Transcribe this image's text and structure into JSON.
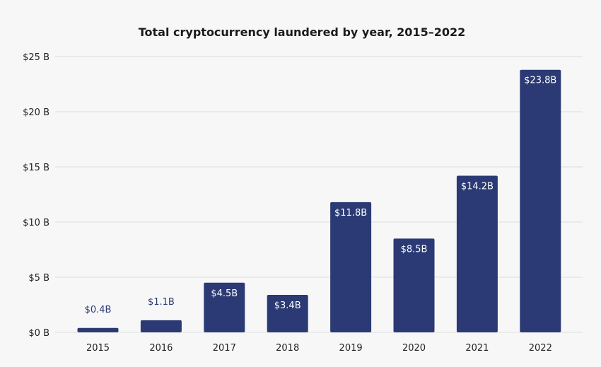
{
  "colors": {
    "background": "#f7f7f7",
    "bar": "#2b3a74",
    "grid": "#dcdcdc",
    "text": "#222222",
    "outside_label": "#2b3a74"
  },
  "chart_data": {
    "type": "bar",
    "title": "Total cryptocurrency laundered by year, 2015–2022",
    "xlabel": "",
    "ylabel": "",
    "categories": [
      "2015",
      "2016",
      "2017",
      "2018",
      "2019",
      "2020",
      "2021",
      "2022"
    ],
    "values": [
      0.4,
      1.1,
      4.5,
      3.4,
      11.8,
      8.5,
      14.2,
      23.8
    ],
    "data_labels": [
      "$0.4B",
      "$1.1B",
      "$4.5B",
      "$3.4B",
      "$11.8B",
      "$8.5B",
      "$14.2B",
      "$23.8B"
    ],
    "label_outside": [
      true,
      true,
      false,
      false,
      false,
      false,
      false,
      false
    ],
    "yticks": [
      0,
      5,
      10,
      15,
      20,
      25
    ],
    "ytick_labels": [
      "$0 B",
      "$5 B",
      "$10 B",
      "$15 B",
      "$20 B",
      "$25 B"
    ],
    "ylim": [
      0,
      25
    ],
    "grid": true,
    "legend": "none"
  }
}
